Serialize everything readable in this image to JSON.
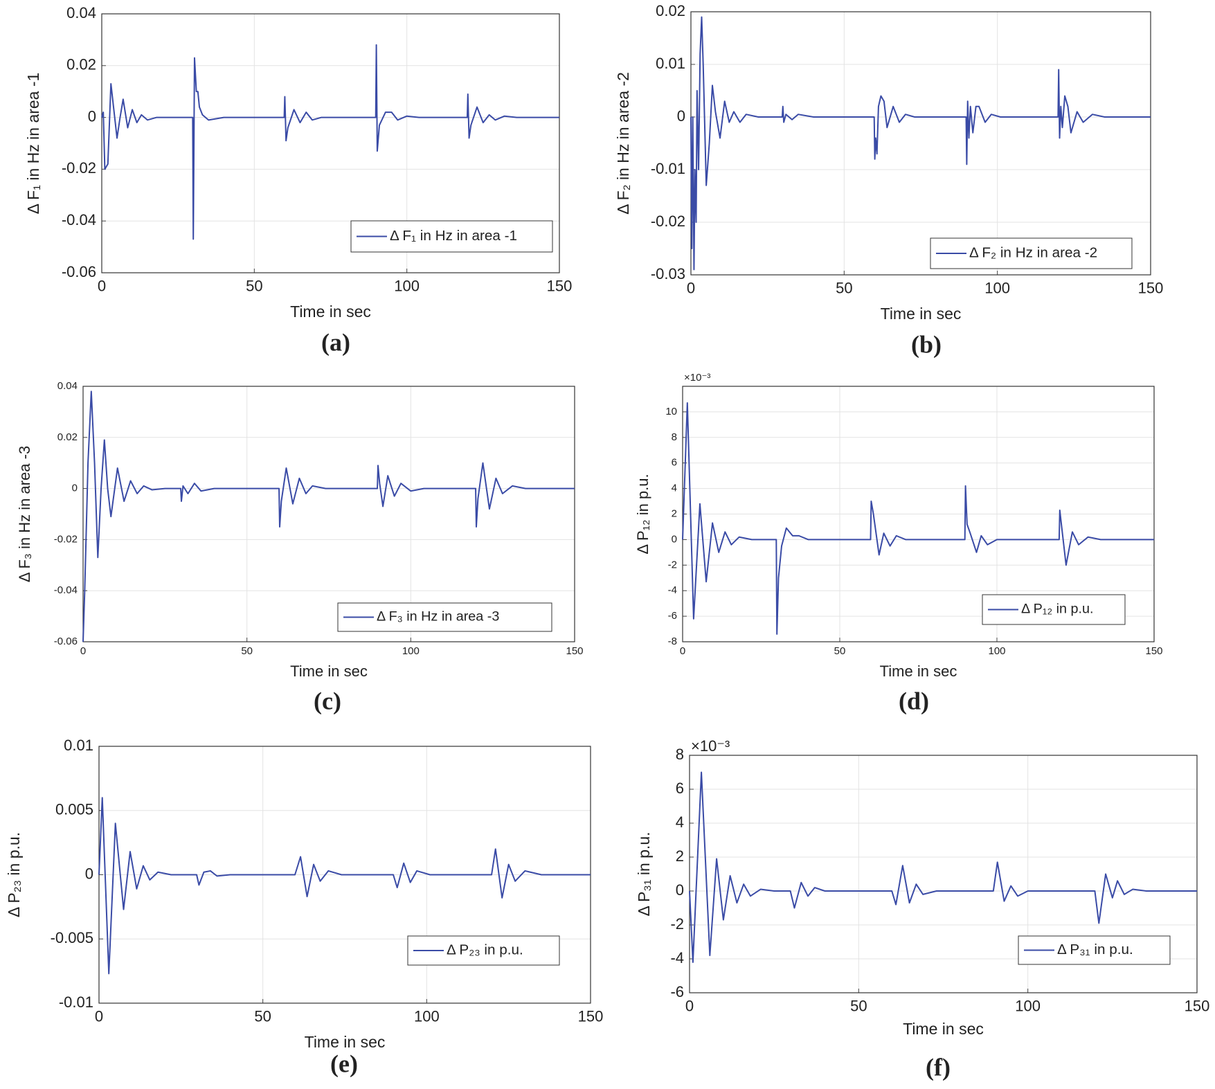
{
  "chart_data": [
    {
      "type": "line",
      "caption": "(a)",
      "ylabel": "Δ F₁ in Hz in area -1",
      "xlabel": "Time in sec",
      "x": [
        0,
        0.5,
        1,
        2,
        3,
        5,
        6,
        7,
        8.5,
        10,
        11.5,
        13,
        15,
        18,
        29.8,
        30,
        30.4,
        31,
        31.5,
        32,
        33,
        35,
        40,
        59.8,
        60,
        60.4,
        61,
        63,
        65,
        67,
        69,
        72,
        89.8,
        90,
        90.3,
        91,
        93,
        95,
        97,
        100,
        104,
        119.8,
        120,
        120.4,
        121,
        123,
        125,
        127,
        129,
        132,
        136,
        150
      ],
      "series": [
        {
          "name": "Δ F₁ in Hz in area -1",
          "color": "#3a4ba6",
          "values": [
            0,
            0.002,
            -0.02,
            -0.018,
            0.013,
            -0.008,
            0,
            0.007,
            -0.004,
            0.003,
            -0.002,
            0.001,
            -0.001,
            0,
            0,
            -0.047,
            0.023,
            0.01,
            0.01,
            0.004,
            0.001,
            -0.001,
            0,
            0,
            0.008,
            -0.009,
            -0.004,
            0.003,
            -0.002,
            0.002,
            -0.001,
            0,
            0,
            0.028,
            -0.013,
            -0.003,
            0.002,
            0.002,
            -0.001,
            0.0005,
            0,
            0,
            0.009,
            -0.008,
            -0.003,
            0.004,
            -0.002,
            0.001,
            -0.001,
            0.0005,
            0,
            0
          ]
        }
      ],
      "xlim": [
        0,
        150
      ],
      "xticks": [
        0,
        50,
        100,
        150
      ],
      "ylim": [
        -0.06,
        0.04
      ],
      "yticks": [
        -0.06,
        -0.04,
        -0.02,
        0,
        0.02,
        0.04
      ],
      "grid": true,
      "legend": "lower right"
    },
    {
      "type": "line",
      "caption": "(b)",
      "ylabel": "Δ F₂ in Hz in area -2",
      "xlabel": "Time in sec",
      "x": [
        0,
        0.3,
        0.6,
        1,
        1.3,
        1.7,
        2,
        2.5,
        3,
        3.5,
        4,
        5,
        6,
        7,
        8,
        9.5,
        11,
        12.5,
        14,
        16,
        18,
        22,
        29.8,
        30,
        30.3,
        31,
        33,
        35,
        40,
        59.8,
        60,
        60.3,
        60.7,
        61.2,
        62,
        63,
        64,
        66,
        68,
        70,
        73,
        78,
        89.8,
        90,
        90.3,
        90.7,
        91.2,
        92,
        93,
        94,
        96,
        98,
        101,
        105,
        119.8,
        120,
        120.3,
        120.7,
        121.2,
        122,
        123,
        124,
        126,
        128,
        131,
        135,
        150
      ],
      "series": [
        {
          "name": "Δ F₂ in Hz in area -2",
          "color": "#3a4ba6",
          "values": [
            0,
            -0.025,
            0,
            -0.029,
            -0.01,
            -0.02,
            0.005,
            -0.01,
            0.012,
            0.019,
            0.01,
            -0.013,
            -0.005,
            0.006,
            0.001,
            -0.004,
            0.003,
            -0.001,
            0.001,
            -0.001,
            0.0005,
            0,
            0,
            0.002,
            -0.001,
            0.0005,
            -0.0005,
            0.0005,
            0,
            0,
            -0.008,
            -0.004,
            -0.007,
            0.002,
            0.004,
            0.003,
            -0.002,
            0.002,
            -0.001,
            0.0005,
            0,
            0,
            0,
            -0.009,
            0.003,
            -0.004,
            0.002,
            -0.003,
            0.002,
            0.002,
            -0.001,
            0.0005,
            0,
            0,
            0,
            0.009,
            -0.004,
            0.002,
            -0.002,
            0.004,
            0.002,
            -0.003,
            0.001,
            -0.001,
            0.0005,
            0,
            0
          ]
        }
      ],
      "xlim": [
        0,
        150
      ],
      "xticks": [
        0,
        50,
        100,
        150
      ],
      "ylim": [
        -0.03,
        0.02
      ],
      "yticks": [
        -0.03,
        -0.02,
        -0.01,
        0,
        0.01,
        0.02
      ],
      "grid": true,
      "legend": "lower right"
    },
    {
      "type": "line",
      "caption": "(c)",
      "ylabel": "Δ F₃ in Hz in area -3",
      "xlabel": "Time in sec",
      "x": [
        0,
        0.5,
        1.5,
        2.5,
        3.5,
        4.5,
        5.5,
        6.5,
        7.5,
        8.5,
        10.5,
        12.5,
        14.5,
        16.5,
        18.5,
        21,
        25,
        29.8,
        30,
        30.5,
        32,
        34,
        36,
        40,
        59.8,
        60,
        60.5,
        62,
        64,
        66,
        68,
        70,
        74,
        89.8,
        90,
        90.5,
        91.5,
        93,
        95,
        97,
        100,
        104,
        119.8,
        120,
        120.5,
        122,
        124,
        126,
        128,
        131,
        135,
        150
      ],
      "series": [
        {
          "name": "Δ F₃ in Hz in area -3",
          "color": "#3a4ba6",
          "values": [
            -0.06,
            -0.04,
            0.01,
            0.038,
            0.01,
            -0.027,
            0,
            0.019,
            0,
            -0.011,
            0.008,
            -0.005,
            0.003,
            -0.002,
            0.001,
            -0.0005,
            0,
            0,
            -0.005,
            0.001,
            -0.002,
            0.002,
            -0.001,
            0,
            0,
            -0.015,
            -0.005,
            0.008,
            -0.006,
            0.004,
            -0.002,
            0.001,
            0,
            0,
            0.009,
            0.002,
            -0.007,
            0.005,
            -0.003,
            0.002,
            -0.001,
            0,
            0,
            -0.015,
            -0.004,
            0.01,
            -0.008,
            0.004,
            -0.002,
            0.001,
            0,
            0
          ]
        }
      ],
      "xlim": [
        0,
        150
      ],
      "xticks": [
        0,
        50,
        100,
        150
      ],
      "ylim": [
        -0.06,
        0.04
      ],
      "yticks": [
        -0.06,
        -0.04,
        -0.02,
        0,
        0.02,
        0.04
      ],
      "grid": true,
      "legend": "lower right"
    },
    {
      "type": "line",
      "caption": "(d)",
      "ylabel": "Δ P₁₂ in p.u.",
      "xlabel": "Time in sec",
      "multiplier": "×10⁻³",
      "x": [
        0,
        1.5,
        3.5,
        5.5,
        7.5,
        9.5,
        11.5,
        13.5,
        15.5,
        18,
        22,
        29.8,
        30,
        30.5,
        31.5,
        33,
        35,
        37,
        40,
        59.8,
        60,
        60.7,
        62.5,
        64,
        66,
        68,
        71,
        89.8,
        90,
        90.5,
        91.5,
        93.5,
        95,
        97,
        100,
        119.8,
        120,
        120.6,
        122,
        124,
        126,
        129,
        133,
        150
      ],
      "series": [
        {
          "name": "Δ P₁₂ in p.u.",
          "color": "#3a4ba6",
          "values": [
            0,
            10.7,
            -6.2,
            2.8,
            -3.3,
            1.3,
            -1,
            0.6,
            -0.4,
            0.2,
            0,
            0,
            -7.4,
            -3,
            -0.5,
            0.9,
            0.3,
            0.3,
            0,
            0,
            3,
            2,
            -1.2,
            0.5,
            -0.5,
            0.3,
            0,
            0,
            4.2,
            1.2,
            0.5,
            -1,
            0.3,
            -0.4,
            0,
            0,
            2.3,
            1,
            -2,
            0.6,
            -0.4,
            0.2,
            0,
            0
          ]
        }
      ],
      "xlim": [
        0,
        150
      ],
      "xticks": [
        0,
        50,
        100,
        150
      ],
      "ylim": [
        -8,
        12
      ],
      "yticks": [
        -8,
        -6,
        -4,
        -2,
        0,
        2,
        4,
        6,
        8,
        10
      ],
      "grid": true,
      "legend": "lower right"
    },
    {
      "type": "line",
      "caption": "(e)",
      "ylabel": "Δ P₂₃ in p.u.",
      "xlabel": "Time in sec",
      "x": [
        0,
        1,
        3,
        5,
        7.5,
        9.5,
        11.5,
        13.5,
        15.5,
        18,
        22,
        29.8,
        30.5,
        32,
        34,
        36,
        40,
        59.8,
        61.5,
        63.5,
        65.5,
        67.5,
        70,
        74,
        89.8,
        91,
        93,
        95,
        97,
        101,
        119.8,
        121,
        123,
        125,
        127,
        130,
        135,
        150
      ],
      "series": [
        {
          "name": "Δ P₂₃ in p.u.",
          "color": "#3a4ba6",
          "values": [
            0,
            0.006,
            -0.0077,
            0.004,
            -0.0027,
            0.0018,
            -0.0011,
            0.0007,
            -0.0004,
            0.0002,
            0,
            0,
            -0.0008,
            0.0002,
            0.0003,
            -0.0001,
            0,
            0,
            0.0014,
            -0.0017,
            0.0008,
            -0.0005,
            0.0003,
            0,
            0,
            -0.001,
            0.0009,
            -0.0006,
            0.0003,
            0,
            0,
            0.002,
            -0.0018,
            0.0008,
            -0.0005,
            0.0003,
            0,
            0
          ]
        }
      ],
      "xlim": [
        0,
        150
      ],
      "xticks": [
        0,
        50,
        100,
        150
      ],
      "ylim": [
        -0.01,
        0.01
      ],
      "yticks": [
        -0.01,
        -0.005,
        0,
        0.005,
        0.01
      ],
      "grid": true,
      "legend": "lower right"
    },
    {
      "type": "line",
      "caption": "(f)",
      "ylabel": "Δ P₃₁ in p.u.",
      "xlabel": "Time in sec",
      "multiplier": "×10⁻³",
      "x": [
        0,
        1,
        3.5,
        6,
        8,
        10,
        12,
        14,
        16,
        18,
        21,
        25,
        29.8,
        31,
        33,
        35,
        37,
        40,
        59.8,
        61,
        63,
        65,
        67,
        69,
        73,
        89.8,
        91,
        93,
        95,
        97,
        100,
        119.8,
        121,
        123,
        125,
        126.5,
        128.5,
        131,
        135,
        150
      ],
      "series": [
        {
          "name": "Δ P₃₁ in p.u.",
          "color": "#3a4ba6",
          "values": [
            0,
            -4.2,
            7,
            -3.8,
            1.9,
            -1.7,
            0.9,
            -0.7,
            0.4,
            -0.3,
            0.1,
            0,
            0,
            -1,
            0.5,
            -0.3,
            0.2,
            0,
            0,
            -0.8,
            1.5,
            -0.7,
            0.4,
            -0.2,
            0,
            0,
            1.7,
            -0.6,
            0.3,
            -0.3,
            0,
            0,
            -1.9,
            1,
            -0.4,
            0.6,
            -0.2,
            0.1,
            0,
            0
          ]
        }
      ],
      "xlim": [
        0,
        150
      ],
      "xticks": [
        0,
        50,
        100,
        150
      ],
      "ylim": [
        -6,
        8
      ],
      "yticks": [
        -6,
        -4,
        -2,
        0,
        2,
        4,
        6,
        8
      ],
      "grid": true,
      "legend": "lower right"
    }
  ]
}
